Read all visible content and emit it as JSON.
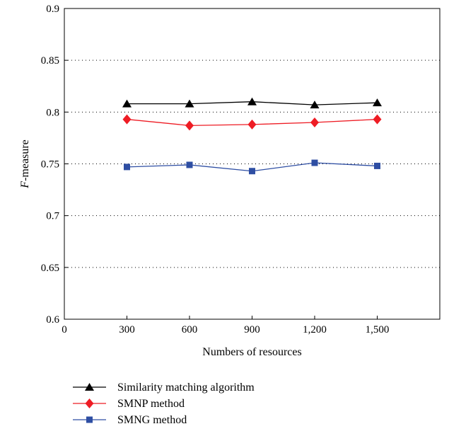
{
  "chart_data": {
    "type": "line",
    "title": "",
    "xlabel": "Numbers of resources",
    "ylabel": "F-measure",
    "ylabel_italic_part": "F",
    "ylabel_rest": "-measure",
    "xlim": [
      0,
      1800
    ],
    "ylim": [
      0.6,
      0.9
    ],
    "x_ticks": [
      0,
      300,
      600,
      900,
      1200,
      1500
    ],
    "x_tick_labels": [
      "0",
      "300",
      "600",
      "900",
      "1,200",
      "1,500"
    ],
    "y_ticks": [
      0.6,
      0.65,
      0.7,
      0.75,
      0.8,
      0.85,
      0.9
    ],
    "y_tick_labels": [
      "0.6",
      "0.65",
      "0.7",
      "0.75",
      "0.8",
      "0.85",
      "0.9"
    ],
    "grid": "horizontal-dotted",
    "legend_position": "bottom-left",
    "x": [
      300,
      600,
      900,
      1200,
      1500
    ],
    "series": [
      {
        "name": "Similarity matching algorithm",
        "marker": "triangle",
        "color": "#000000",
        "values": [
          0.808,
          0.808,
          0.81,
          0.807,
          0.809
        ]
      },
      {
        "name": "SMNP method",
        "marker": "diamond",
        "color": "#ee1c24",
        "values": [
          0.793,
          0.787,
          0.788,
          0.79,
          0.793
        ]
      },
      {
        "name": "SMNG method",
        "marker": "square",
        "color": "#2e4ea3",
        "values": [
          0.747,
          0.749,
          0.743,
          0.751,
          0.748
        ]
      }
    ]
  }
}
